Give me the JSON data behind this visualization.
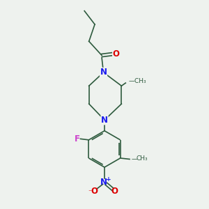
{
  "bg_color": "#eef2ee",
  "bond_color": "#2d5a3d",
  "atom_colors": {
    "N": "#1a1aee",
    "O": "#dd0000",
    "F": "#cc44cc",
    "C": "#2d5a3d"
  },
  "font_size_atom": 8.5,
  "font_size_small": 7.0,
  "lw": 1.2
}
